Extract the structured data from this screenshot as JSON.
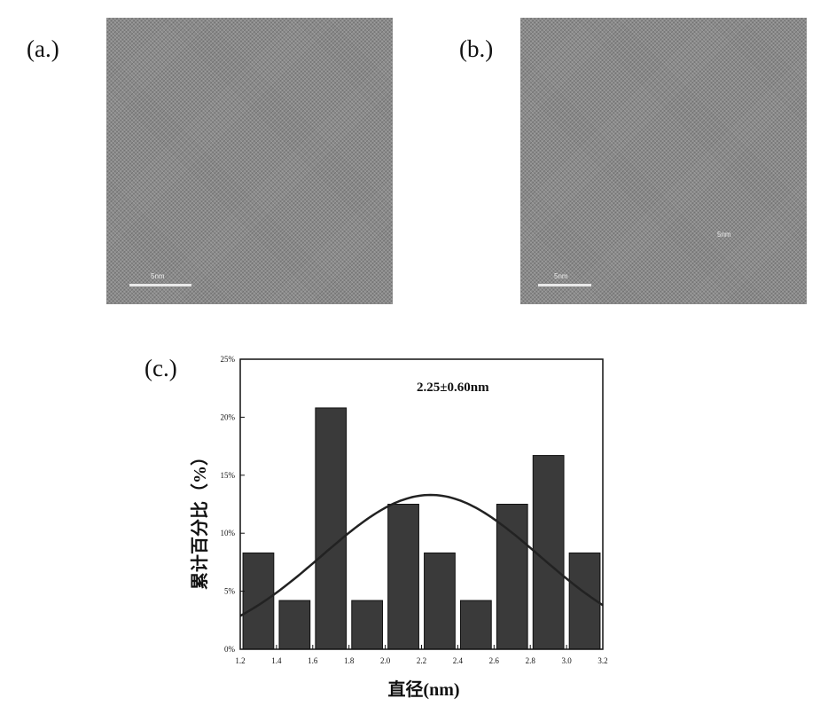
{
  "panels": {
    "a": {
      "label": "(a.)",
      "scale_text": "5nm"
    },
    "b": {
      "label": "(b.)",
      "scale_text": "5nm",
      "extra_text": "5nm"
    },
    "c": {
      "label": "(c.)"
    }
  },
  "chart_data": {
    "type": "bar",
    "annotation": "2.25±0.60nm",
    "xlabel": "直径(nm)",
    "ylabel": "累计百分比（%）",
    "x_ticks": [
      "1.2",
      "1.4",
      "1.6",
      "1.8",
      "2.0",
      "2.2",
      "2.4",
      "2.6",
      "2.8",
      "3.0",
      "3.2"
    ],
    "y_ticks": [
      "0%",
      "5%",
      "10%",
      "15%",
      "20%",
      "25%"
    ],
    "xlim": [
      1.2,
      3.2
    ],
    "ylim": [
      0,
      25
    ],
    "bar_width": 0.17,
    "bars": [
      {
        "x": 1.3,
        "value": 8.3
      },
      {
        "x": 1.5,
        "value": 4.2
      },
      {
        "x": 1.7,
        "value": 20.8
      },
      {
        "x": 1.9,
        "value": 4.2
      },
      {
        "x": 2.1,
        "value": 12.5
      },
      {
        "x": 2.3,
        "value": 8.3
      },
      {
        "x": 2.5,
        "value": 4.2
      },
      {
        "x": 2.7,
        "value": 12.5
      },
      {
        "x": 2.9,
        "value": 16.7
      },
      {
        "x": 3.1,
        "value": 8.3
      }
    ],
    "fit": {
      "type": "gaussian",
      "mean": 2.25,
      "sd": 0.6,
      "peak": 13.3
    },
    "colors": {
      "bar": "#3a3a3a",
      "curve": "#222222",
      "axes": "#111111"
    }
  }
}
